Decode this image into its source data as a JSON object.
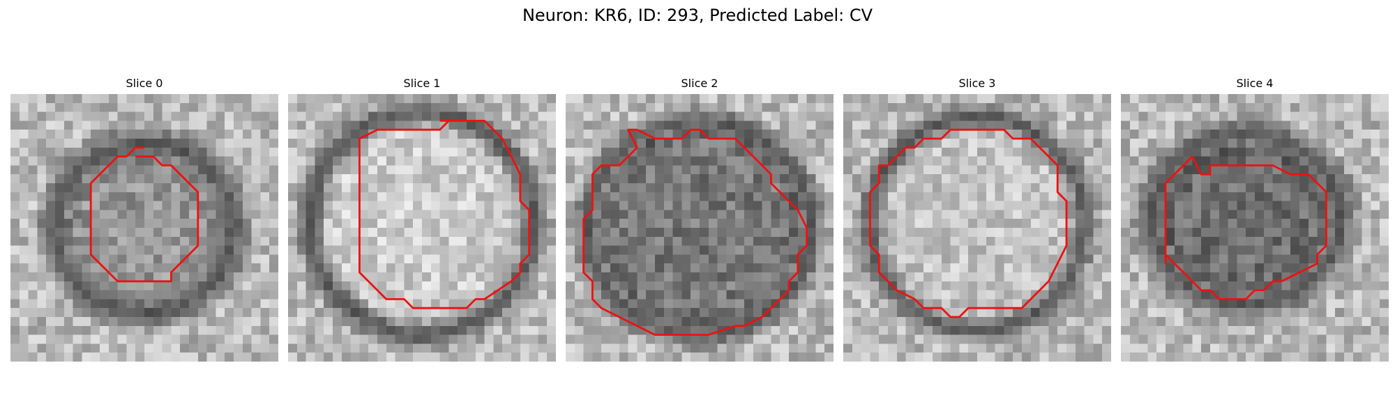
{
  "figure": {
    "title": "Neuron: KR6, ID: 293, Predicted Label: CV"
  },
  "slices": [
    {
      "title": "Slice 0",
      "contour": [
        [
          14,
          7
        ],
        [
          16,
          7
        ],
        [
          17,
          8
        ],
        [
          18,
          8
        ],
        [
          21,
          11
        ],
        [
          21,
          17
        ],
        [
          18,
          20
        ],
        [
          18,
          21
        ],
        [
          12,
          21
        ],
        [
          9,
          18
        ],
        [
          9,
          10
        ],
        [
          12,
          7
        ],
        [
          13,
          7
        ],
        [
          14,
          6
        ],
        [
          15,
          6
        ]
      ],
      "dark_ring": {
        "cx": 15,
        "cy": 15,
        "rx": 10,
        "ry": 9.5,
        "width": 2.6
      },
      "inner_tone": 150
    },
    {
      "title": "Slice 1",
      "contour": [
        [
          17,
          3
        ],
        [
          22,
          3
        ],
        [
          24,
          5
        ],
        [
          25,
          7
        ],
        [
          26,
          9
        ],
        [
          26,
          12
        ],
        [
          27,
          13
        ],
        [
          27,
          18
        ],
        [
          26,
          19
        ],
        [
          26,
          20
        ],
        [
          25,
          21
        ],
        [
          22,
          23
        ],
        [
          21,
          23
        ],
        [
          20,
          24
        ],
        [
          14,
          24
        ],
        [
          13,
          23
        ],
        [
          11,
          23
        ],
        [
          9,
          21
        ],
        [
          8,
          20
        ],
        [
          8,
          5
        ],
        [
          10,
          4
        ],
        [
          17,
          4
        ],
        [
          18,
          3
        ]
      ],
      "dark_ring": {
        "cx": 15,
        "cy": 14.5,
        "rx": 12.5,
        "ry": 12.5,
        "width": 2.2
      },
      "inner_tone": 205
    },
    {
      "title": "Slice 2",
      "contour": [
        [
          8,
          4
        ],
        [
          10,
          5
        ],
        [
          13,
          5
        ],
        [
          14,
          4
        ],
        [
          15,
          4
        ],
        [
          16,
          5
        ],
        [
          19,
          5
        ],
        [
          23,
          9
        ],
        [
          23,
          10
        ],
        [
          24,
          11
        ],
        [
          26,
          13
        ],
        [
          27,
          15
        ],
        [
          27,
          17
        ],
        [
          26,
          18
        ],
        [
          26,
          20
        ],
        [
          25,
          21
        ],
        [
          25,
          22
        ],
        [
          23,
          24
        ],
        [
          22,
          25
        ],
        [
          20,
          26
        ],
        [
          19,
          26
        ],
        [
          16,
          27
        ],
        [
          10,
          27
        ],
        [
          8,
          26
        ],
        [
          6,
          25
        ],
        [
          4,
          24
        ],
        [
          3,
          23
        ],
        [
          3,
          21
        ],
        [
          2,
          20
        ],
        [
          2,
          14
        ],
        [
          3,
          13
        ],
        [
          3,
          9
        ],
        [
          4,
          8
        ],
        [
          6,
          8
        ],
        [
          8,
          6
        ],
        [
          7,
          4
        ],
        [
          8,
          4
        ]
      ],
      "dark_ring": {
        "cx": 15,
        "cy": 15,
        "rx": 12.5,
        "ry": 12,
        "width": 2.2
      },
      "inner_tone": 120
    },
    {
      "title": "Slice 3",
      "contour": [
        [
          9,
          5
        ],
        [
          11,
          5
        ],
        [
          12,
          4
        ],
        [
          18,
          4
        ],
        [
          19,
          5
        ],
        [
          21,
          5
        ],
        [
          24,
          8
        ],
        [
          24,
          11
        ],
        [
          25,
          12
        ],
        [
          25,
          17
        ],
        [
          24,
          19
        ],
        [
          23,
          21
        ],
        [
          21,
          23
        ],
        [
          20,
          24
        ],
        [
          14,
          24
        ],
        [
          13,
          25
        ],
        [
          12,
          25
        ],
        [
          11,
          24
        ],
        [
          9,
          24
        ],
        [
          8,
          23
        ],
        [
          6,
          22
        ],
        [
          5,
          21
        ],
        [
          4,
          20
        ],
        [
          4,
          18
        ],
        [
          3,
          17
        ],
        [
          3,
          11
        ],
        [
          4,
          10
        ],
        [
          4,
          8
        ],
        [
          5,
          8
        ],
        [
          6,
          7
        ],
        [
          7,
          6
        ],
        [
          8,
          6
        ],
        [
          9,
          5
        ]
      ],
      "dark_ring": {
        "cx": 15,
        "cy": 14.5,
        "rx": 12,
        "ry": 12,
        "width": 2.0
      },
      "inner_tone": 195
    },
    {
      "title": "Slice 4",
      "contour": [
        [
          8,
          7
        ],
        [
          9,
          9
        ],
        [
          10,
          9
        ],
        [
          10,
          8
        ],
        [
          17,
          8
        ],
        [
          19,
          9
        ],
        [
          21,
          9
        ],
        [
          23,
          11
        ],
        [
          23,
          17
        ],
        [
          22,
          18
        ],
        [
          22,
          19
        ],
        [
          20,
          20
        ],
        [
          18,
          21
        ],
        [
          17,
          21
        ],
        [
          16,
          22
        ],
        [
          15,
          22
        ],
        [
          14,
          23
        ],
        [
          11,
          23
        ],
        [
          10,
          22
        ],
        [
          9,
          22
        ],
        [
          7,
          20
        ],
        [
          6,
          19
        ],
        [
          5,
          18
        ],
        [
          5,
          19
        ],
        [
          5,
          18
        ],
        [
          5,
          10
        ],
        [
          8,
          7
        ]
      ],
      "dark_ring": {
        "cx": 14,
        "cy": 14,
        "rx": 10.5,
        "ry": 9.5,
        "width": 2.6
      },
      "inner_tone": 110
    }
  ]
}
